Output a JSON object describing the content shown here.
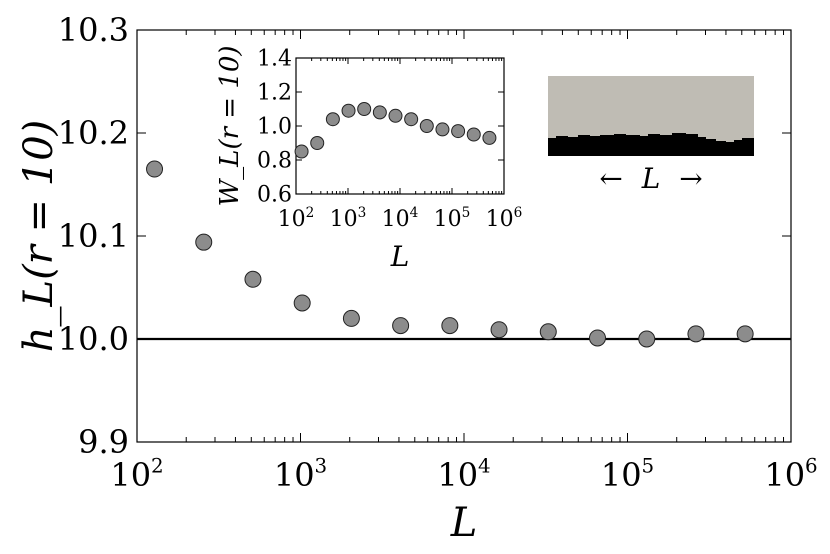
{
  "chart_data": [
    {
      "type": "scatter",
      "xscale": "log",
      "xlim": [
        100,
        1000000
      ],
      "ylim": [
        9.9,
        10.3
      ],
      "xticks": [
        {
          "value": 100,
          "base": "10",
          "exp": "2"
        },
        {
          "value": 1000,
          "base": "10",
          "exp": "3"
        },
        {
          "value": 10000,
          "base": "10",
          "exp": "4"
        },
        {
          "value": 100000,
          "base": "10",
          "exp": "5"
        },
        {
          "value": 1000000,
          "base": "10",
          "exp": "6"
        }
      ],
      "yticks": [
        {
          "value": 9.9,
          "label": "9.9"
        },
        {
          "value": 10.0,
          "label": "10.0"
        },
        {
          "value": 10.1,
          "label": "10.1"
        },
        {
          "value": 10.2,
          "label": "10.2"
        },
        {
          "value": 10.3,
          "label": "10.3"
        }
      ],
      "xlabel": "L",
      "ylabel": "h_L(r = 10)",
      "reference_line_y": 10.0,
      "grid": false,
      "points": [
        {
          "x": 128,
          "y": 10.165
        },
        {
          "x": 256,
          "y": 10.094
        },
        {
          "x": 512,
          "y": 10.058
        },
        {
          "x": 1024,
          "y": 10.035
        },
        {
          "x": 2048,
          "y": 10.02
        },
        {
          "x": 4096,
          "y": 10.013
        },
        {
          "x": 8192,
          "y": 10.013
        },
        {
          "x": 16384,
          "y": 10.009
        },
        {
          "x": 32768,
          "y": 10.007
        },
        {
          "x": 65536,
          "y": 10.001
        },
        {
          "x": 131072,
          "y": 10.0
        },
        {
          "x": 262144,
          "y": 10.005
        },
        {
          "x": 524288,
          "y": 10.005
        }
      ]
    },
    {
      "type": "scatter",
      "inset": true,
      "xscale": "log",
      "xlim": [
        100,
        1000000
      ],
      "ylim": [
        0.6,
        1.4
      ],
      "xticks": [
        {
          "value": 100,
          "base": "10",
          "exp": "2"
        },
        {
          "value": 1000,
          "base": "10",
          "exp": "3"
        },
        {
          "value": 10000,
          "base": "10",
          "exp": "4"
        },
        {
          "value": 100000,
          "base": "10",
          "exp": "5"
        },
        {
          "value": 1000000,
          "base": "10",
          "exp": "6"
        }
      ],
      "yticks": [
        {
          "value": 0.6,
          "label": "0.6"
        },
        {
          "value": 0.8,
          "label": "0.8"
        },
        {
          "value": 1.0,
          "label": "1.0"
        },
        {
          "value": 1.2,
          "label": "1.2"
        },
        {
          "value": 1.4,
          "label": "1.4"
        }
      ],
      "xlabel": "L",
      "ylabel": "W_L(r = 10)",
      "grid": false,
      "points": [
        {
          "x": 128,
          "y": 0.85
        },
        {
          "x": 256,
          "y": 0.9
        },
        {
          "x": 512,
          "y": 1.04
        },
        {
          "x": 1024,
          "y": 1.09
        },
        {
          "x": 2048,
          "y": 1.1
        },
        {
          "x": 4096,
          "y": 1.08
        },
        {
          "x": 8192,
          "y": 1.06
        },
        {
          "x": 16384,
          "y": 1.04
        },
        {
          "x": 32768,
          "y": 1.0
        },
        {
          "x": 65536,
          "y": 0.98
        },
        {
          "x": 131072,
          "y": 0.97
        },
        {
          "x": 262144,
          "y": 0.95
        },
        {
          "x": 524288,
          "y": 0.93
        }
      ]
    }
  ],
  "diagram": {
    "top_color": "#bfbcb4",
    "bottom_color": "#000000",
    "caption_left_arrow": "←",
    "caption_label": "L",
    "caption_right_arrow": "→"
  }
}
